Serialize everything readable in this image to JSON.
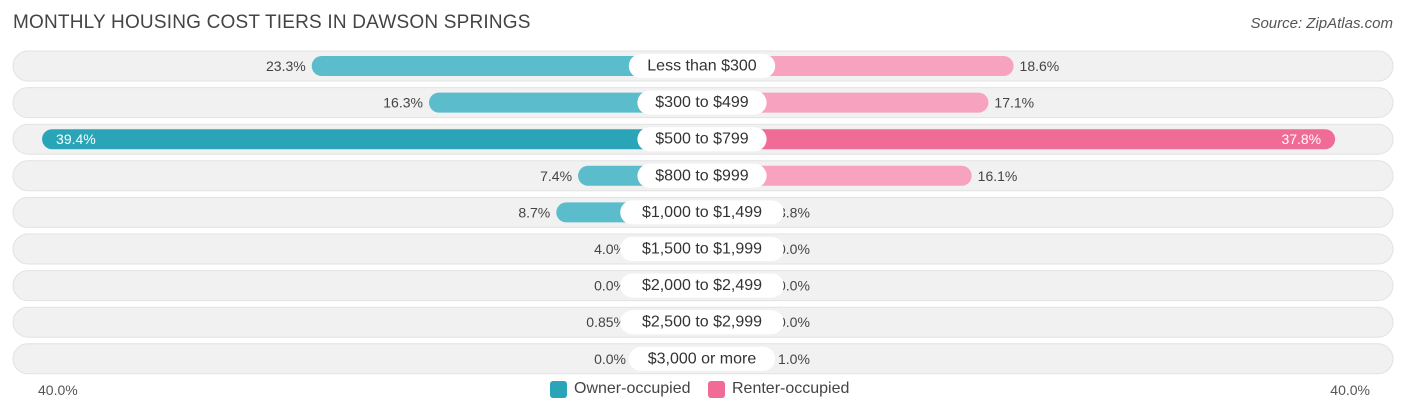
{
  "title": "MONTHLY HOUSING COST TIERS IN DAWSON SPRINGS",
  "source": "Source: ZipAtlas.com",
  "colors": {
    "owner": "#5bbccb",
    "owner_strong": "#2aa5b8",
    "renter": "#f7a2bf",
    "renter_strong": "#f06b96",
    "row_bg": "#f1f1f1"
  },
  "chart_data": {
    "type": "bar",
    "orientation": "horizontal-diverging",
    "categories": [
      "Less than $300",
      "$300 to $499",
      "$500 to $799",
      "$800 to $999",
      "$1,000 to $1,499",
      "$1,500 to $1,999",
      "$2,000 to $2,499",
      "$2,500 to $2,999",
      "$3,000 or more"
    ],
    "series": [
      {
        "name": "Owner-occupied",
        "values": [
          23.3,
          16.3,
          39.4,
          7.4,
          8.7,
          4.0,
          0.0,
          0.85,
          0.0
        ],
        "labels": [
          "23.3%",
          "16.3%",
          "39.4%",
          "7.4%",
          "8.7%",
          "4.0%",
          "0.0%",
          "0.85%",
          "0.0%"
        ]
      },
      {
        "name": "Renter-occupied",
        "values": [
          18.6,
          17.1,
          37.8,
          16.1,
          3.8,
          0.0,
          0.0,
          0.0,
          1.0
        ],
        "labels": [
          "18.6%",
          "17.1%",
          "37.8%",
          "16.1%",
          "3.8%",
          "0.0%",
          "0.0%",
          "0.0%",
          "1.0%"
        ]
      }
    ],
    "xlim": [
      -40,
      40
    ],
    "axis_left_label": "40.0%",
    "axis_right_label": "40.0%",
    "legend_placement": "bottom-center"
  }
}
